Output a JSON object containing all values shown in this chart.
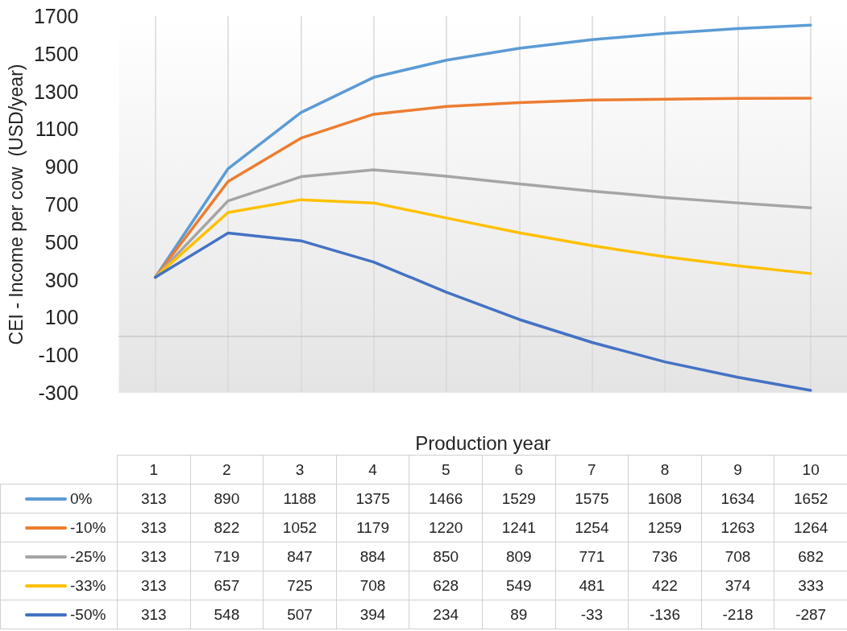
{
  "chart_data": {
    "type": "line",
    "xlabel": "Production year",
    "ylabel": "CEI - Income per cow  (USD/year)",
    "categories": [
      "1",
      "2",
      "3",
      "4",
      "5",
      "6",
      "7",
      "8",
      "9",
      "10"
    ],
    "ylim": [
      -300,
      1700
    ],
    "yticks": [
      -300,
      -100,
      100,
      300,
      500,
      700,
      900,
      1100,
      1300,
      1500,
      1700
    ],
    "grid": "x",
    "legend": "bottom",
    "marker": "none",
    "line_style": "solid",
    "data_labels": true,
    "series": [
      {
        "name": "0%",
        "color": "#5b9bd5",
        "values": [
          313,
          890,
          1188,
          1375,
          1466,
          1529,
          1575,
          1608,
          1634,
          1652
        ]
      },
      {
        "name": "-10%",
        "color": "#ed7d31",
        "values": [
          313,
          822,
          1052,
          1179,
          1220,
          1241,
          1254,
          1259,
          1263,
          1264
        ]
      },
      {
        "name": "-25%",
        "color": "#a5a5a5",
        "values": [
          313,
          719,
          847,
          884,
          850,
          809,
          771,
          736,
          708,
          682
        ]
      },
      {
        "name": "-33%",
        "color": "#ffc000",
        "values": [
          313,
          657,
          725,
          708,
          628,
          549,
          481,
          422,
          374,
          333
        ]
      },
      {
        "name": "-50%",
        "color": "#4472c4",
        "values": [
          313,
          548,
          507,
          394,
          234,
          89,
          -33,
          -136,
          -218,
          -287
        ]
      }
    ]
  }
}
